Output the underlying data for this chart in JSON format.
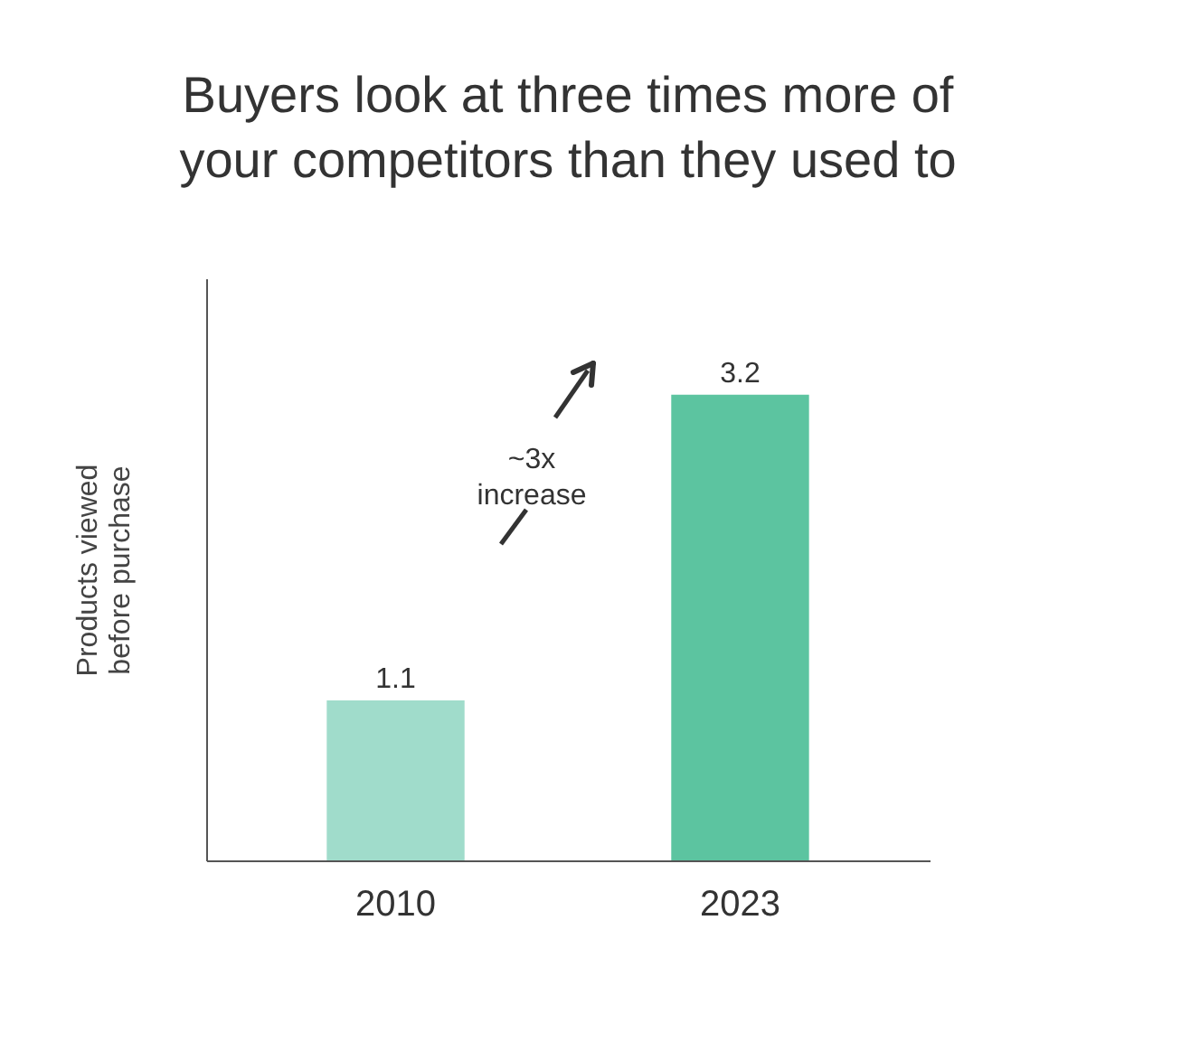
{
  "chart_data": {
    "type": "bar",
    "title": "Buyers look at three times more of your competitors than they used to",
    "ylabel": "Products viewed before purchase",
    "categories": [
      "2010",
      "2023"
    ],
    "values": [
      1.1,
      3.2
    ],
    "colors": [
      "#a0dccb",
      "#5cc4a0"
    ],
    "ylim": [
      0,
      4
    ],
    "data_labels": true,
    "grid": false,
    "tick_labels": "x",
    "annotations": [
      "~3x increase"
    ]
  }
}
